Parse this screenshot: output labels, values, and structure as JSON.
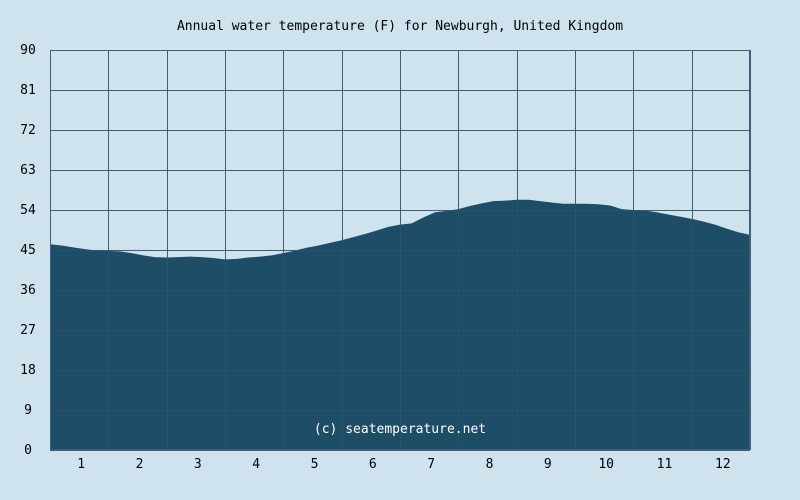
{
  "chart_data": {
    "type": "area",
    "title": "Annual water temperature (F) for Newburgh, United Kingdom",
    "xlabel": "",
    "ylabel": "",
    "ylim": [
      0,
      90
    ],
    "yticks": [
      "0",
      "9",
      "18",
      "27",
      "36",
      "45",
      "54",
      "63",
      "72",
      "81",
      "90"
    ],
    "categories": [
      "1",
      "2",
      "3",
      "4",
      "5",
      "6",
      "7",
      "8",
      "9",
      "10",
      "11",
      "12"
    ],
    "grid": true,
    "colors": {
      "background": "#cfe3ee",
      "area": "#1e4d68",
      "grid": "#3f5f78",
      "watermark": "#ffffff"
    },
    "series": [
      {
        "x": [
          1,
          1.2,
          1.4,
          1.6,
          1.8,
          2.0,
          2.2,
          2.4,
          2.6,
          2.8,
          3.0,
          3.2,
          3.4,
          3.6,
          3.8,
          4.0,
          4.2,
          4.4,
          4.6,
          4.8,
          5.0,
          5.2,
          5.4,
          5.6,
          5.8,
          6.0,
          6.2,
          6.4,
          6.6,
          6.8,
          7.0,
          7.2,
          7.4,
          7.6,
          7.8,
          8.0,
          8.2,
          8.4,
          8.6,
          8.8,
          9.0,
          9.2,
          9.4,
          9.6,
          9.8,
          10.0,
          10.2,
          10.4,
          10.6,
          10.8,
          11.0,
          11.2,
          11.4,
          11.6,
          11.8,
          12.0,
          12.2,
          12.4,
          12.6,
          12.8,
          13.0
        ],
        "values": [
          46.3,
          46.0,
          45.6,
          45.2,
          44.9,
          44.8,
          44.7,
          44.3,
          43.8,
          43.4,
          43.3,
          43.4,
          43.5,
          43.4,
          43.2,
          42.9,
          43.0,
          43.3,
          43.5,
          43.8,
          44.3,
          44.9,
          45.5,
          46.0,
          46.6,
          47.2,
          47.9,
          48.6,
          49.4,
          50.2,
          50.7,
          51.0,
          52.3,
          53.5,
          53.8,
          54.2,
          54.9,
          55.5,
          56.0,
          56.1,
          56.3,
          56.3,
          56.0,
          55.7,
          55.4,
          55.4,
          55.4,
          55.3,
          55.0,
          54.2,
          54.0,
          53.9,
          53.5,
          53.0,
          52.5,
          52.0,
          51.4,
          50.7,
          49.8,
          49.0,
          48.4
        ]
      }
    ],
    "watermark": "(c) seatemperature.net"
  }
}
